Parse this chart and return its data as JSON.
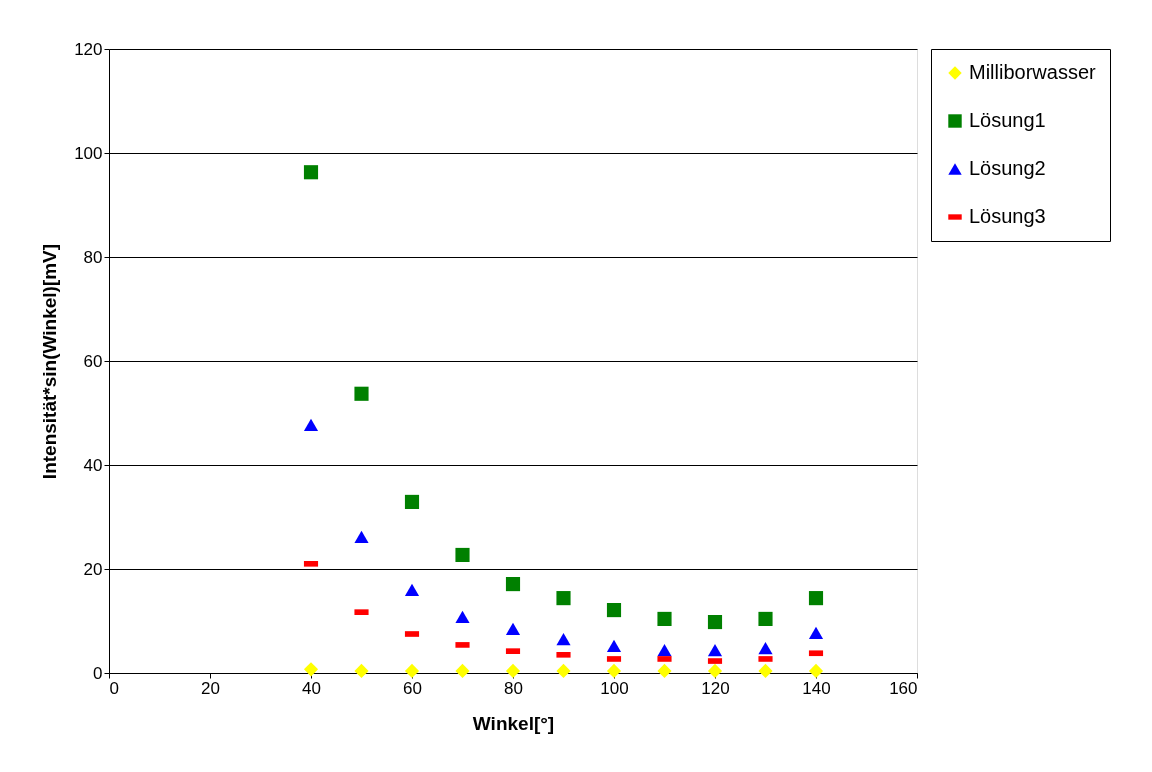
{
  "chart_data": {
    "type": "scatter",
    "xlabel": "Winkel[°]",
    "ylabel": "Intensität*sin(Winkel)[mV]",
    "x": [
      40,
      50,
      60,
      70,
      80,
      90,
      100,
      110,
      120,
      130,
      140
    ],
    "series": [
      {
        "name": "Milliborwasser",
        "color": "#ffff00",
        "marker": "diamond",
        "values": [
          0.7,
          0.4,
          0.4,
          0.4,
          0.4,
          0.4,
          0.4,
          0.4,
          0.4,
          0.4,
          0.4
        ]
      },
      {
        "name": "Lösung1",
        "color": "#008000",
        "marker": "square",
        "values": [
          96.3,
          53.7,
          32.9,
          22.7,
          17.1,
          14.4,
          12.1,
          10.4,
          9.8,
          10.4,
          14.4
        ]
      },
      {
        "name": "Lösung2",
        "color": "#0000ff",
        "marker": "triangle",
        "values": [
          47.7,
          26.2,
          16.0,
          10.8,
          8.5,
          6.5,
          5.2,
          4.4,
          4.4,
          4.8,
          7.7
        ]
      },
      {
        "name": "Lösung3",
        "color": "#ff0000",
        "values": [
          21.0,
          11.7,
          7.5,
          5.4,
          4.2,
          3.5,
          2.7,
          2.7,
          2.3,
          2.7,
          3.8
        ]
      }
    ],
    "xlim": [
      0,
      160
    ],
    "xticks": [
      0,
      20,
      40,
      60,
      80,
      100,
      120,
      140,
      160
    ],
    "ylim": [
      0,
      120
    ],
    "yticks": [
      0,
      20,
      40,
      60,
      80,
      100,
      120
    ],
    "grid": "y",
    "legend": "right"
  }
}
